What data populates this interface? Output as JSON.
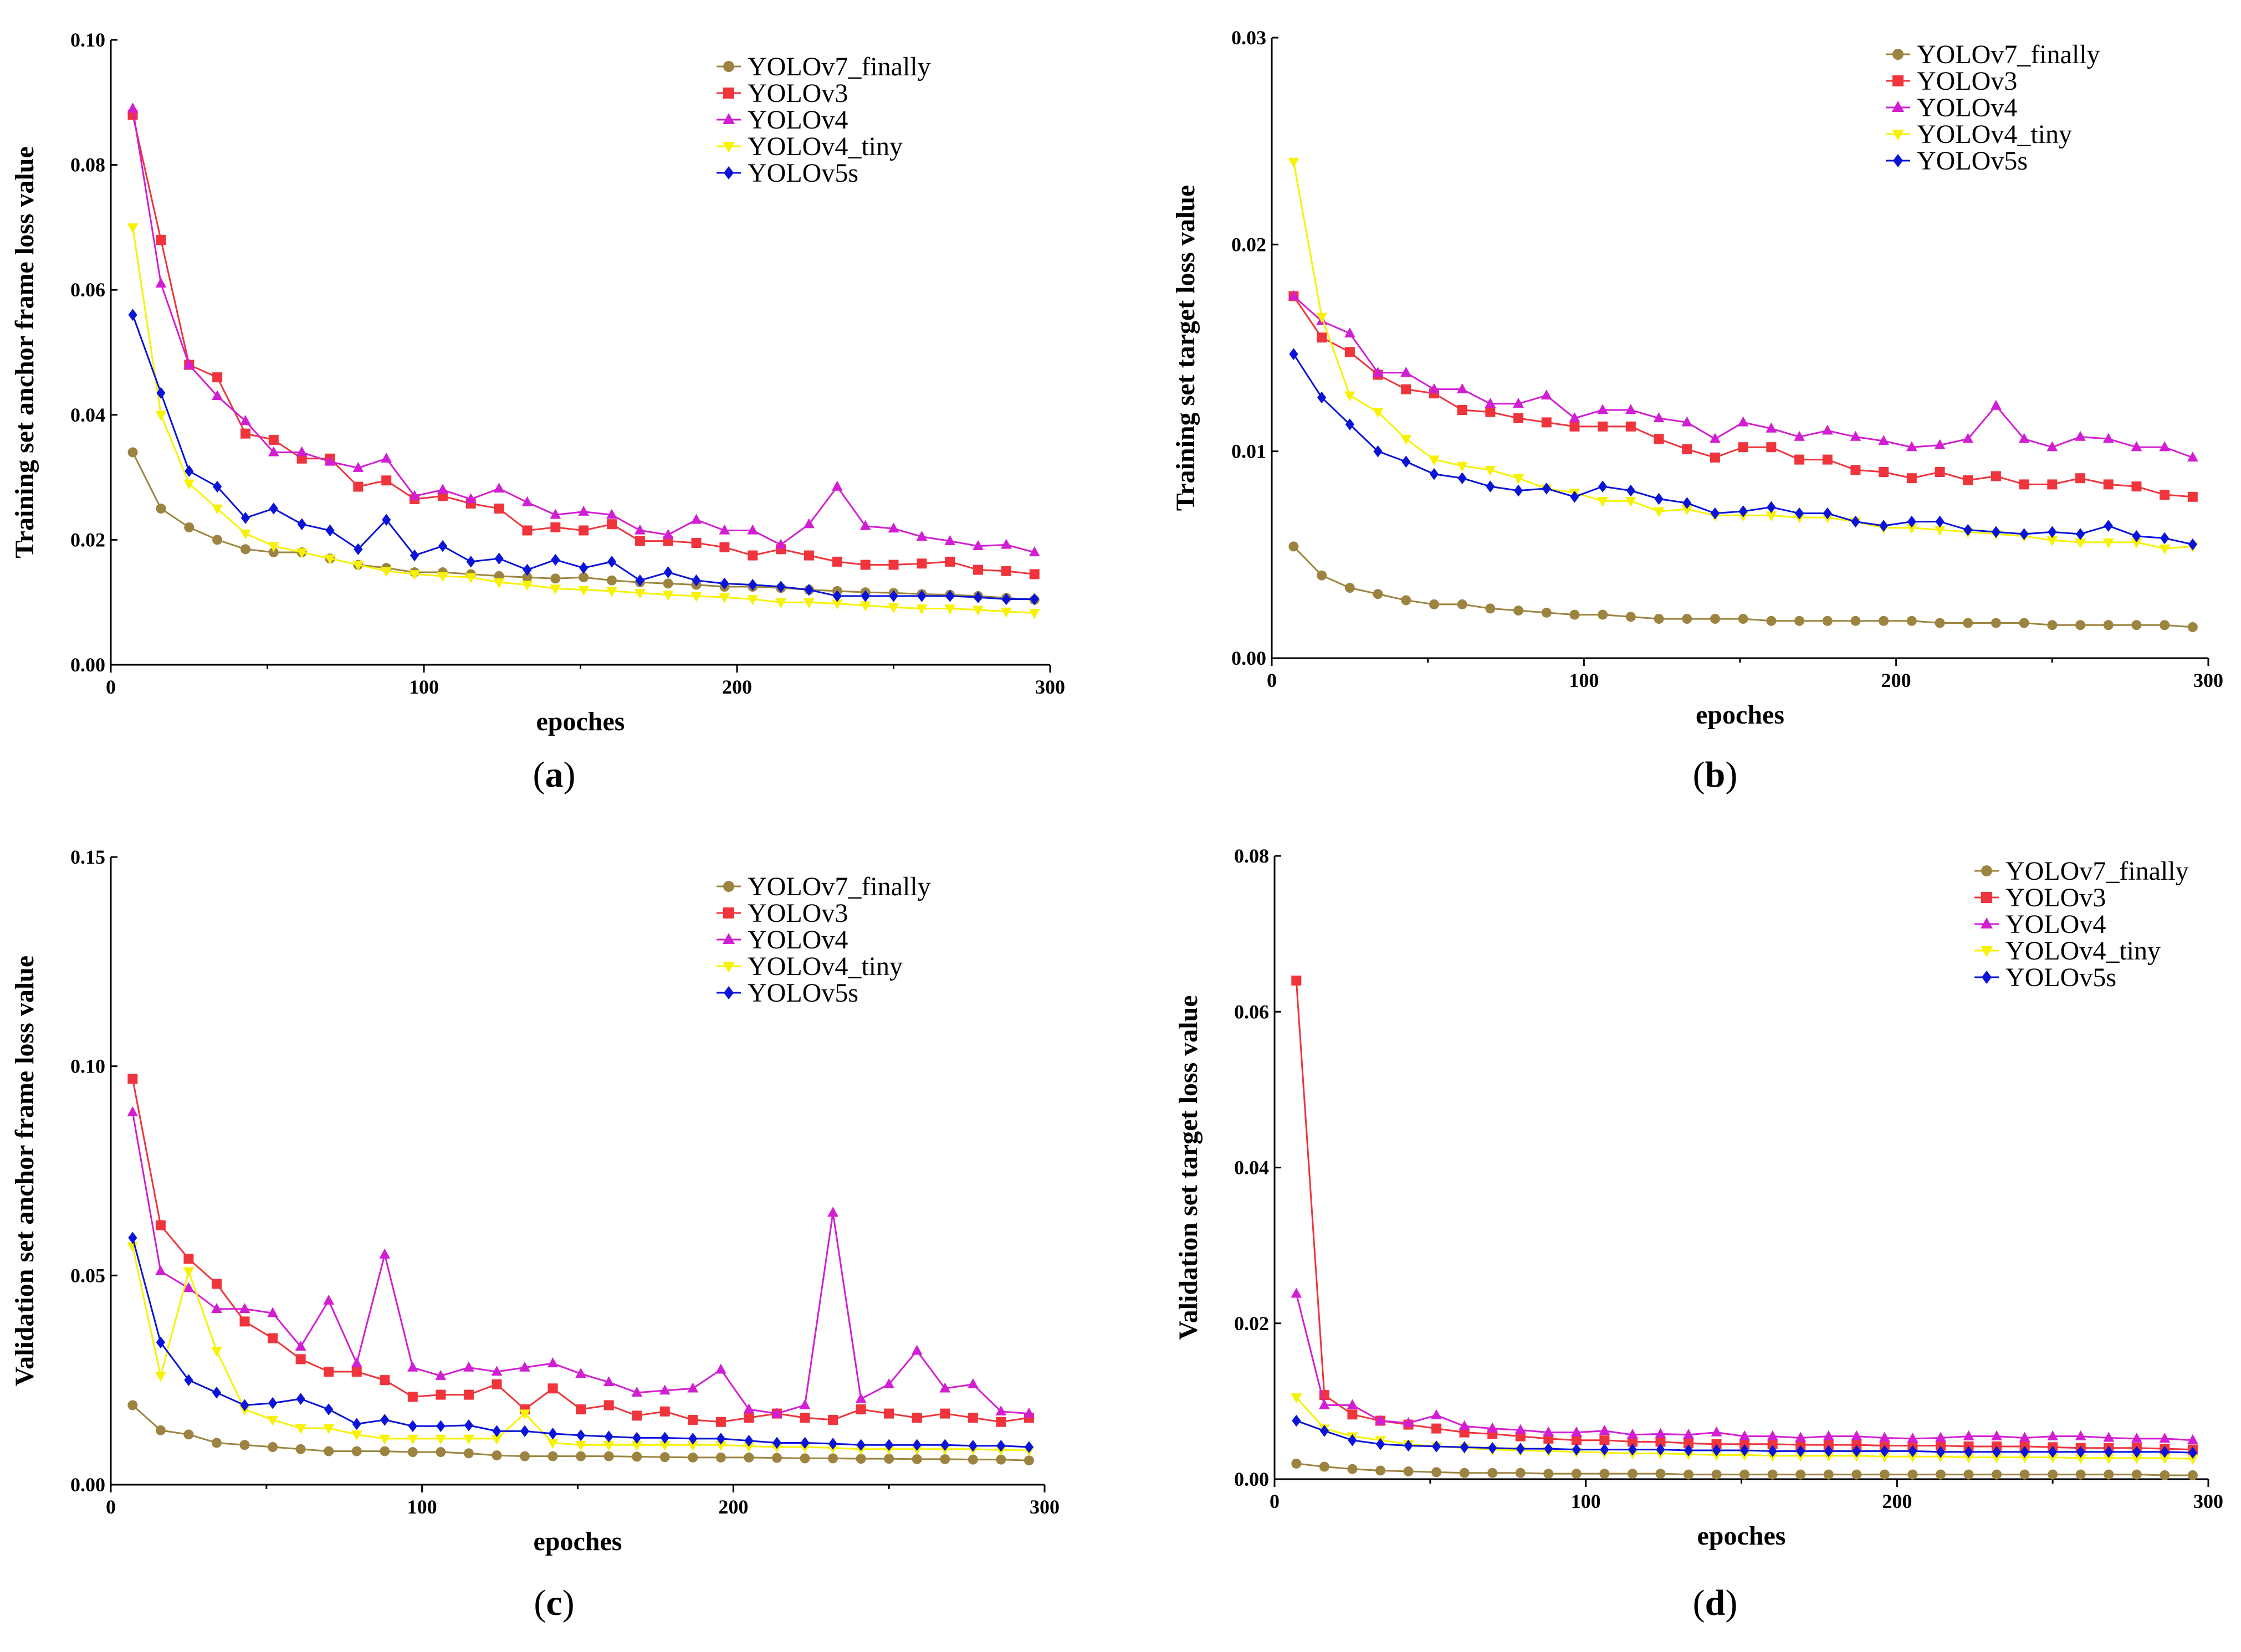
{
  "colors": {
    "YOLOv7_finally": "#9c8440",
    "YOLOv3": "#f0343c",
    "YOLOv4": "#d21ed2",
    "YOLOv4_tiny": "#f7f200",
    "YOLOv5s": "#0a14d8"
  },
  "legend_items": [
    "YOLOv7_finally",
    "YOLOv3",
    "YOLOv4",
    "YOLOv4_tiny",
    "YOLOv5s"
  ],
  "chart_data": [
    {
      "id": "a",
      "type": "line",
      "caption": "a",
      "xlabel": "epoches",
      "ylabel": "Training set anchor frame loss value",
      "xlim": [
        0,
        300
      ],
      "ylim": [
        0,
        0.1
      ],
      "xticks": [
        "0",
        "100",
        "200",
        "300"
      ],
      "yticks": [
        "0.00",
        "0.02",
        "0.04",
        "0.06",
        "0.08",
        "0.10"
      ],
      "x": [
        7,
        16,
        25,
        34,
        43,
        52,
        61,
        70,
        79,
        88,
        97,
        106,
        115,
        124,
        133,
        142,
        151,
        160,
        169,
        178,
        187,
        196,
        205,
        214,
        223,
        232,
        241,
        250,
        259,
        268,
        277,
        286,
        295
      ],
      "series": [
        {
          "name": "YOLOv7_finally",
          "marker": "circle",
          "values": [
            0.034,
            0.025,
            0.022,
            0.02,
            0.0185,
            0.018,
            0.018,
            0.017,
            0.016,
            0.0155,
            0.0148,
            0.0148,
            0.0145,
            0.0142,
            0.014,
            0.0138,
            0.014,
            0.0135,
            0.0132,
            0.013,
            0.0128,
            0.0125,
            0.0125,
            0.0123,
            0.012,
            0.0118,
            0.0116,
            0.0115,
            0.0113,
            0.0112,
            0.011,
            0.0107,
            0.0104
          ]
        },
        {
          "name": "YOLOv3",
          "marker": "square",
          "values": [
            0.088,
            0.068,
            0.048,
            0.046,
            0.037,
            0.036,
            0.033,
            0.033,
            0.0285,
            0.0295,
            0.0265,
            0.027,
            0.0258,
            0.025,
            0.0215,
            0.022,
            0.0215,
            0.0225,
            0.0198,
            0.0198,
            0.0195,
            0.0188,
            0.0175,
            0.0185,
            0.0175,
            0.0165,
            0.016,
            0.016,
            0.0162,
            0.0165,
            0.0152,
            0.015,
            0.0145
          ]
        },
        {
          "name": "YOLOv4",
          "marker": "triangle",
          "values": [
            0.089,
            0.061,
            0.048,
            0.043,
            0.039,
            0.034,
            0.034,
            0.0325,
            0.0315,
            0.033,
            0.027,
            0.028,
            0.0265,
            0.0282,
            0.026,
            0.024,
            0.0245,
            0.024,
            0.0215,
            0.0208,
            0.0232,
            0.0215,
            0.0215,
            0.0192,
            0.0225,
            0.0285,
            0.0222,
            0.0218,
            0.0205,
            0.0198,
            0.019,
            0.0192,
            0.018
          ]
        },
        {
          "name": "YOLOv4_tiny",
          "marker": "tri-down",
          "values": [
            0.07,
            0.04,
            0.029,
            0.025,
            0.021,
            0.019,
            0.018,
            0.017,
            0.016,
            0.015,
            0.0145,
            0.0142,
            0.014,
            0.0132,
            0.0128,
            0.0122,
            0.012,
            0.0118,
            0.0115,
            0.0112,
            0.011,
            0.0108,
            0.0105,
            0.01,
            0.01,
            0.0098,
            0.0095,
            0.0092,
            0.009,
            0.009,
            0.0088,
            0.0085,
            0.0083
          ]
        },
        {
          "name": "YOLOv5s",
          "marker": "diamond",
          "values": [
            0.056,
            0.0435,
            0.031,
            0.0285,
            0.0235,
            0.025,
            0.0225,
            0.0215,
            0.0185,
            0.0232,
            0.0175,
            0.019,
            0.0165,
            0.017,
            0.0152,
            0.0168,
            0.0155,
            0.0165,
            0.0135,
            0.0148,
            0.0135,
            0.013,
            0.0128,
            0.0125,
            0.012,
            0.011,
            0.011,
            0.011,
            0.011,
            0.011,
            0.0108,
            0.0105,
            0.0105
          ]
        }
      ]
    },
    {
      "id": "b",
      "type": "line",
      "caption": "b",
      "xlabel": "epoches",
      "ylabel": "Training set target loss value",
      "xlim": [
        0,
        300
      ],
      "ylim": [
        0,
        0.03
      ],
      "xticks": [
        "0",
        "100",
        "200",
        "300"
      ],
      "yticks": [
        "0.00",
        "0.01",
        "0.02",
        "0.03"
      ],
      "x": [
        7,
        16,
        25,
        34,
        43,
        52,
        61,
        70,
        79,
        88,
        97,
        106,
        115,
        124,
        133,
        142,
        151,
        160,
        169,
        178,
        187,
        196,
        205,
        214,
        223,
        232,
        241,
        250,
        259,
        268,
        277,
        286,
        295
      ],
      "series": [
        {
          "name": "YOLOv7_finally",
          "marker": "circle",
          "values": [
            0.0054,
            0.004,
            0.0034,
            0.0031,
            0.0028,
            0.0026,
            0.0026,
            0.0024,
            0.0023,
            0.0022,
            0.0021,
            0.0021,
            0.002,
            0.0019,
            0.0019,
            0.0019,
            0.0019,
            0.0018,
            0.0018,
            0.0018,
            0.0018,
            0.0018,
            0.0018,
            0.0017,
            0.0017,
            0.0017,
            0.0017,
            0.0016,
            0.0016,
            0.0016,
            0.0016,
            0.0016,
            0.0015
          ]
        },
        {
          "name": "YOLOv3",
          "marker": "square",
          "values": [
            0.0175,
            0.0155,
            0.0148,
            0.0137,
            0.013,
            0.0128,
            0.012,
            0.0119,
            0.0116,
            0.0114,
            0.0112,
            0.0112,
            0.0112,
            0.0106,
            0.0101,
            0.0097,
            0.0102,
            0.0102,
            0.0096,
            0.0096,
            0.0091,
            0.009,
            0.0087,
            0.009,
            0.0086,
            0.0088,
            0.0084,
            0.0084,
            0.0087,
            0.0084,
            0.0083,
            0.0079,
            0.0078
          ]
        },
        {
          "name": "YOLOv4",
          "marker": "triangle",
          "values": [
            0.0175,
            0.0163,
            0.0157,
            0.0138,
            0.0138,
            0.013,
            0.013,
            0.0123,
            0.0123,
            0.0127,
            0.0116,
            0.012,
            0.012,
            0.0116,
            0.0114,
            0.0106,
            0.0114,
            0.0111,
            0.0107,
            0.011,
            0.0107,
            0.0105,
            0.0102,
            0.0103,
            0.0106,
            0.0122,
            0.0106,
            0.0102,
            0.0107,
            0.0106,
            0.0102,
            0.0102,
            0.0097
          ]
        },
        {
          "name": "YOLOv4_tiny",
          "marker": "tri-down",
          "values": [
            0.024,
            0.0165,
            0.0127,
            0.0119,
            0.0106,
            0.0096,
            0.0093,
            0.0091,
            0.0087,
            0.0082,
            0.008,
            0.0076,
            0.0076,
            0.0071,
            0.0072,
            0.0069,
            0.0069,
            0.0069,
            0.0068,
            0.0068,
            0.0066,
            0.0063,
            0.0063,
            0.0062,
            0.0061,
            0.006,
            0.0059,
            0.0057,
            0.0056,
            0.0056,
            0.0056,
            0.0053,
            0.0054
          ]
        },
        {
          "name": "YOLOv5s",
          "marker": "diamond",
          "values": [
            0.0147,
            0.0126,
            0.0113,
            0.01,
            0.0095,
            0.0089,
            0.0087,
            0.0083,
            0.0081,
            0.0082,
            0.0078,
            0.0083,
            0.0081,
            0.0077,
            0.0075,
            0.007,
            0.0071,
            0.0073,
            0.007,
            0.007,
            0.0066,
            0.0064,
            0.0066,
            0.0066,
            0.0062,
            0.0061,
            0.006,
            0.0061,
            0.006,
            0.0064,
            0.0059,
            0.0058,
            0.0055
          ]
        }
      ]
    },
    {
      "id": "c",
      "type": "line",
      "caption": "c",
      "xlabel": "epoches",
      "ylabel": "Validation set anchor frame loss value",
      "xlim": [
        0,
        300
      ],
      "ylim": [
        0,
        0.15
      ],
      "xticks": [
        "0",
        "100",
        "200",
        "300"
      ],
      "yticks": [
        "0.00",
        "0.05",
        "0.10",
        "0.15"
      ],
      "x": [
        7,
        16,
        25,
        34,
        43,
        52,
        61,
        70,
        79,
        88,
        97,
        106,
        115,
        124,
        133,
        142,
        151,
        160,
        169,
        178,
        187,
        196,
        205,
        214,
        223,
        232,
        241,
        250,
        259,
        268,
        277,
        286,
        295
      ],
      "series": [
        {
          "name": "YOLOv7_finally",
          "marker": "circle",
          "values": [
            0.019,
            0.013,
            0.012,
            0.01,
            0.0095,
            0.009,
            0.0085,
            0.008,
            0.008,
            0.008,
            0.0078,
            0.0078,
            0.0075,
            0.007,
            0.0068,
            0.0068,
            0.0068,
            0.0068,
            0.0067,
            0.0066,
            0.0065,
            0.0065,
            0.0065,
            0.0064,
            0.0063,
            0.0063,
            0.0062,
            0.0062,
            0.0061,
            0.0061,
            0.006,
            0.006,
            0.0058
          ]
        },
        {
          "name": "YOLOv3",
          "marker": "square",
          "values": [
            0.097,
            0.062,
            0.054,
            0.048,
            0.039,
            0.035,
            0.03,
            0.027,
            0.027,
            0.025,
            0.021,
            0.0215,
            0.0215,
            0.024,
            0.018,
            0.023,
            0.018,
            0.019,
            0.0165,
            0.0175,
            0.0155,
            0.015,
            0.016,
            0.017,
            0.016,
            0.0155,
            0.018,
            0.017,
            0.016,
            0.017,
            0.016,
            0.015,
            0.016
          ]
        },
        {
          "name": "YOLOv4",
          "marker": "triangle",
          "values": [
            0.089,
            0.051,
            0.047,
            0.042,
            0.042,
            0.041,
            0.033,
            0.044,
            0.029,
            0.055,
            0.028,
            0.026,
            0.028,
            0.027,
            0.028,
            0.029,
            0.0265,
            0.0245,
            0.022,
            0.0225,
            0.023,
            0.0275,
            0.018,
            0.017,
            0.019,
            0.065,
            0.0205,
            0.024,
            0.032,
            0.023,
            0.024,
            0.0175,
            0.017
          ]
        },
        {
          "name": "YOLOv4_tiny",
          "marker": "tri-down",
          "values": [
            0.057,
            0.026,
            0.051,
            0.032,
            0.018,
            0.0155,
            0.0135,
            0.0135,
            0.012,
            0.011,
            0.011,
            0.011,
            0.011,
            0.011,
            0.017,
            0.01,
            0.0095,
            0.0095,
            0.0095,
            0.0095,
            0.0095,
            0.0095,
            0.0092,
            0.009,
            0.009,
            0.0088,
            0.0085,
            0.0085,
            0.0085,
            0.0085,
            0.0085,
            0.0083,
            0.0082
          ]
        },
        {
          "name": "YOLOv5s",
          "marker": "diamond",
          "values": [
            0.059,
            0.034,
            0.025,
            0.022,
            0.019,
            0.0195,
            0.0205,
            0.018,
            0.0145,
            0.0155,
            0.014,
            0.014,
            0.0142,
            0.0128,
            0.0128,
            0.0122,
            0.0118,
            0.0115,
            0.0112,
            0.0112,
            0.011,
            0.011,
            0.0105,
            0.01,
            0.01,
            0.0098,
            0.0095,
            0.0095,
            0.0095,
            0.0095,
            0.0093,
            0.0093,
            0.009
          ]
        }
      ]
    },
    {
      "id": "d",
      "type": "line",
      "caption": "d",
      "xlabel": "epoches",
      "ylabel": "Validation set target loss value",
      "xlim": [
        0,
        300
      ],
      "ylim": [
        0,
        0.08
      ],
      "xticks": [
        "0",
        "100",
        "200",
        "300"
      ],
      "yticks": [
        "0.00",
        "0.02",
        "0.04",
        "0.06",
        "0.08"
      ],
      "x": [
        7,
        16,
        25,
        34,
        43,
        52,
        61,
        70,
        79,
        88,
        97,
        106,
        115,
        124,
        133,
        142,
        151,
        160,
        169,
        178,
        187,
        196,
        205,
        214,
        223,
        232,
        241,
        250,
        259,
        268,
        277,
        286,
        295
      ],
      "series": [
        {
          "name": "YOLOv7_finally",
          "marker": "circle",
          "values": [
            0.002,
            0.0016,
            0.0013,
            0.0011,
            0.001,
            0.0009,
            0.0008,
            0.0008,
            0.0008,
            0.0007,
            0.0007,
            0.0007,
            0.0007,
            0.0007,
            0.0006,
            0.0006,
            0.0006,
            0.0006,
            0.0006,
            0.0006,
            0.0006,
            0.0006,
            0.0006,
            0.0006,
            0.0006,
            0.0006,
            0.0006,
            0.0006,
            0.0006,
            0.0006,
            0.0006,
            0.0005,
            0.0005
          ]
        },
        {
          "name": "YOLOv3",
          "marker": "square",
          "values": [
            0.064,
            0.0108,
            0.0083,
            0.0075,
            0.007,
            0.0065,
            0.006,
            0.0058,
            0.0055,
            0.0052,
            0.005,
            0.005,
            0.0048,
            0.0048,
            0.0046,
            0.0045,
            0.0045,
            0.0045,
            0.0044,
            0.0044,
            0.0044,
            0.0043,
            0.0043,
            0.0043,
            0.0042,
            0.0042,
            0.0042,
            0.0041,
            0.004,
            0.004,
            0.004,
            0.0039,
            0.0038
          ]
        },
        {
          "name": "YOLOv4",
          "marker": "triangle",
          "values": [
            0.0238,
            0.0095,
            0.0095,
            0.0075,
            0.0072,
            0.0082,
            0.0068,
            0.0065,
            0.0063,
            0.006,
            0.006,
            0.0062,
            0.0057,
            0.0058,
            0.0057,
            0.006,
            0.0055,
            0.0055,
            0.0053,
            0.0055,
            0.0055,
            0.0053,
            0.0052,
            0.0053,
            0.0055,
            0.0055,
            0.0053,
            0.0055,
            0.0055,
            0.0053,
            0.0052,
            0.0052,
            0.005
          ]
        },
        {
          "name": "YOLOv4_tiny",
          "marker": "tri-down",
          "values": [
            0.0105,
            0.0065,
            0.0055,
            0.005,
            0.0045,
            0.0042,
            0.004,
            0.0038,
            0.0037,
            0.0036,
            0.0035,
            0.0034,
            0.0033,
            0.0033,
            0.0032,
            0.0031,
            0.0031,
            0.003,
            0.003,
            0.003,
            0.003,
            0.0029,
            0.0029,
            0.0029,
            0.0028,
            0.0028,
            0.0028,
            0.0028,
            0.0027,
            0.0027,
            0.0027,
            0.0027,
            0.0026
          ]
        },
        {
          "name": "YOLOv5s",
          "marker": "diamond",
          "values": [
            0.0075,
            0.0062,
            0.005,
            0.0045,
            0.0043,
            0.0042,
            0.0041,
            0.004,
            0.0039,
            0.0039,
            0.0038,
            0.0038,
            0.0038,
            0.0038,
            0.0037,
            0.0037,
            0.0037,
            0.0036,
            0.0036,
            0.0036,
            0.0036,
            0.0036,
            0.0036,
            0.0035,
            0.0035,
            0.0035,
            0.0035,
            0.0035,
            0.0035,
            0.0035,
            0.0035,
            0.0035,
            0.0034
          ]
        }
      ]
    }
  ]
}
